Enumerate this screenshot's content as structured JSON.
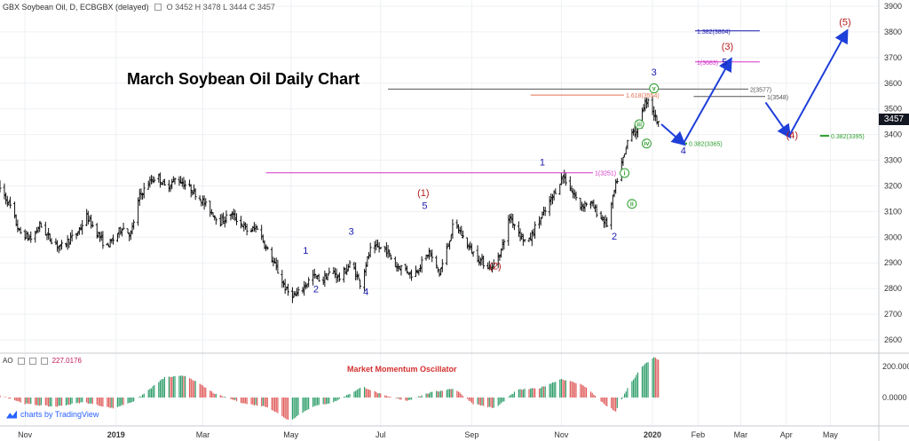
{
  "header": {
    "symbol_label": "GBX Soybean Oil, D, ECBGBX (delayed)",
    "ohlc": "O 3452 H 3478 L 3444 C 3457"
  },
  "title": "March Soybean Oil Daily Chart",
  "last_price": "3457",
  "oscillator": {
    "name": "AO",
    "value": "227.0176",
    "title": "Market Momentum Oscillator",
    "ticks": [
      "200.0000",
      "0.0000"
    ]
  },
  "watermark": "charts by TradingView",
  "colors": {
    "candle": "#111111",
    "wave_blue": "#1a1aaf",
    "wave_red": "#b71c1c",
    "wave_green": "#2e9e2e",
    "arrow_blue": "#1f3fd9",
    "osc_green": "#2e9e6b",
    "osc_red": "#e05a5a",
    "fib_pink": "#d633c9",
    "fib_orange": "#e07050"
  },
  "chart_data": {
    "type": "ohlc",
    "y_ticks": [
      "3900",
      "3800",
      "3700",
      "3600",
      "3500",
      "3400",
      "3300",
      "3200",
      "3100",
      "3000",
      "2900",
      "2800",
      "2700",
      "2600"
    ],
    "ylim": [
      2550,
      3900
    ],
    "x_labels": [
      {
        "label": "Nov",
        "day": 0
      },
      {
        "label": "2019",
        "day": 62
      },
      {
        "label": "Mar",
        "day": 121
      },
      {
        "label": "May",
        "day": 181
      },
      {
        "label": "Jul",
        "day": 242
      },
      {
        "label": "Sep",
        "day": 304
      },
      {
        "label": "Nov",
        "day": 365
      },
      {
        "label": "2020",
        "day": 427
      },
      {
        "label": "Feb",
        "day": 458
      },
      {
        "label": "Mar",
        "day": 487
      },
      {
        "label": "Apr",
        "day": 518
      },
      {
        "label": "May",
        "day": 548
      }
    ],
    "xlim": [
      -17,
      581
    ],
    "price_path": [
      [
        -18,
        3200
      ],
      [
        -10,
        3120
      ],
      [
        -4,
        3020
      ],
      [
        5,
        2990
      ],
      [
        10,
        3050
      ],
      [
        16,
        3000
      ],
      [
        24,
        2960
      ],
      [
        30,
        2990
      ],
      [
        35,
        3010
      ],
      [
        42,
        3080
      ],
      [
        50,
        3010
      ],
      [
        55,
        2960
      ],
      [
        60,
        2990
      ],
      [
        66,
        3040
      ],
      [
        72,
        3010
      ],
      [
        78,
        3160
      ],
      [
        84,
        3210
      ],
      [
        90,
        3240
      ],
      [
        96,
        3190
      ],
      [
        103,
        3230
      ],
      [
        110,
        3200
      ],
      [
        118,
        3160
      ],
      [
        125,
        3110
      ],
      [
        133,
        3060
      ],
      [
        140,
        3090
      ],
      [
        146,
        3060
      ],
      [
        152,
        3020
      ],
      [
        158,
        3040
      ],
      [
        164,
        2960
      ],
      [
        170,
        2890
      ],
      [
        178,
        2790
      ],
      [
        184,
        2770
      ],
      [
        190,
        2810
      ],
      [
        196,
        2850
      ],
      [
        202,
        2830
      ],
      [
        209,
        2870
      ],
      [
        214,
        2840
      ],
      [
        222,
        2900
      ],
      [
        228,
        2820
      ],
      [
        235,
        2950
      ],
      [
        240,
        2960
      ],
      [
        246,
        2950
      ],
      [
        252,
        2890
      ],
      [
        258,
        2880
      ],
      [
        264,
        2850
      ],
      [
        270,
        2900
      ],
      [
        275,
        2940
      ],
      [
        282,
        2860
      ],
      [
        286,
        2930
      ],
      [
        292,
        3060
      ],
      [
        300,
        2980
      ],
      [
        306,
        2930
      ],
      [
        312,
        2900
      ],
      [
        318,
        2880
      ],
      [
        324,
        2950
      ],
      [
        330,
        3080
      ],
      [
        336,
        3020
      ],
      [
        342,
        2970
      ],
      [
        348,
        3050
      ],
      [
        354,
        3100
      ],
      [
        360,
        3170
      ],
      [
        366,
        3240
      ],
      [
        372,
        3180
      ],
      [
        378,
        3120
      ],
      [
        384,
        3140
      ],
      [
        390,
        3090
      ],
      [
        396,
        3050
      ],
      [
        400,
        3150
      ],
      [
        404,
        3250
      ],
      [
        408,
        3320
      ],
      [
        412,
        3430
      ],
      [
        416,
        3400
      ],
      [
        420,
        3500
      ],
      [
        424,
        3540
      ],
      [
        428,
        3480
      ],
      [
        431,
        3440
      ],
      [
        433,
        3457
      ]
    ],
    "waves": [
      {
        "label": "1",
        "day": 191,
        "price": 2935,
        "color": "blue"
      },
      {
        "label": "2",
        "day": 198,
        "price": 2785,
        "color": "blue"
      },
      {
        "label": "3",
        "day": 222,
        "price": 3010,
        "color": "blue"
      },
      {
        "label": "4",
        "day": 232,
        "price": 2775,
        "color": "blue"
      },
      {
        "label": "5",
        "day": 272,
        "price": 3110,
        "color": "blue"
      },
      {
        "label": "(1)",
        "day": 271,
        "price": 3160,
        "color": "red"
      },
      {
        "label": "(2)",
        "day": 320,
        "price": 2875,
        "color": "red"
      },
      {
        "label": "1",
        "day": 352,
        "price": 3280,
        "color": "blue"
      },
      {
        "label": "2",
        "day": 401,
        "price": 2990,
        "color": "blue"
      },
      {
        "label": "3",
        "day": 428,
        "price": 3630,
        "color": "blue"
      },
      {
        "label": "(3)",
        "day": 478,
        "price": 3730,
        "color": "red"
      },
      {
        "label": "4",
        "day": 448,
        "price": 3325,
        "color": "blue"
      },
      {
        "label": "5",
        "day": 476,
        "price": 3670,
        "color": "blue"
      },
      {
        "label": "(4)",
        "day": 522,
        "price": 3385,
        "color": "red"
      },
      {
        "label": "(5)",
        "day": 558,
        "price": 3825,
        "color": "red"
      }
    ],
    "subwaves": [
      {
        "label": "i",
        "day": 408,
        "price": 3250
      },
      {
        "label": "ii",
        "day": 413,
        "price": 3130
      },
      {
        "label": "iii",
        "day": 418,
        "price": 3440
      },
      {
        "label": "iv",
        "day": 423,
        "price": 3365
      },
      {
        "label": "v",
        "day": 428,
        "price": 3580
      }
    ],
    "projection": [
      [
        433,
        3440
      ],
      [
        448,
        3365
      ],
      [
        480,
        3690
      ],
      [
        504,
        3525
      ],
      [
        520,
        3395
      ],
      [
        559,
        3800
      ]
    ],
    "levels": [
      {
        "label": "2(3577)",
        "price": 3577,
        "from": 247,
        "color": "#555555"
      },
      {
        "label": "1.618(3554)",
        "price": 3554,
        "from": 344,
        "color": "#e07050"
      },
      {
        "label": "1(3548)",
        "price": 3548,
        "from": 455,
        "color": "#555555"
      },
      {
        "label": "1.382(3804)",
        "price": 3804,
        "from": 500,
        "color": "#1a1aaf"
      },
      {
        "label": "1(3683)",
        "price": 3683,
        "from": 500,
        "color": "#d633c9"
      },
      {
        "label": "0.382(3365)",
        "price": 3365,
        "from": 448,
        "color": "#2e9e2e",
        "bold": true
      },
      {
        "label": "0.382(3395)",
        "price": 3395,
        "from": 541,
        "color": "#2e9e2e",
        "bold": true
      },
      {
        "label": "1(3251)",
        "price": 3251,
        "from": 164,
        "color": "#d633c9"
      }
    ],
    "oscillator_range": [
      -150,
      260
    ],
    "oscillator_profile": [
      [
        -18,
        20
      ],
      [
        0,
        -40
      ],
      [
        20,
        -60
      ],
      [
        40,
        -30
      ],
      [
        60,
        -70
      ],
      [
        75,
        -20
      ],
      [
        95,
        130
      ],
      [
        110,
        140
      ],
      [
        130,
        20
      ],
      [
        150,
        -40
      ],
      [
        165,
        -60
      ],
      [
        180,
        -150
      ],
      [
        195,
        -60
      ],
      [
        210,
        -30
      ],
      [
        230,
        70
      ],
      [
        245,
        10
      ],
      [
        260,
        -20
      ],
      [
        275,
        30
      ],
      [
        292,
        60
      ],
      [
        305,
        -40
      ],
      [
        320,
        -70
      ],
      [
        335,
        50
      ],
      [
        350,
        60
      ],
      [
        365,
        120
      ],
      [
        380,
        80
      ],
      [
        395,
        -50
      ],
      [
        402,
        -90
      ],
      [
        410,
        60
      ],
      [
        420,
        200
      ],
      [
        428,
        260
      ],
      [
        433,
        227
      ]
    ]
  }
}
